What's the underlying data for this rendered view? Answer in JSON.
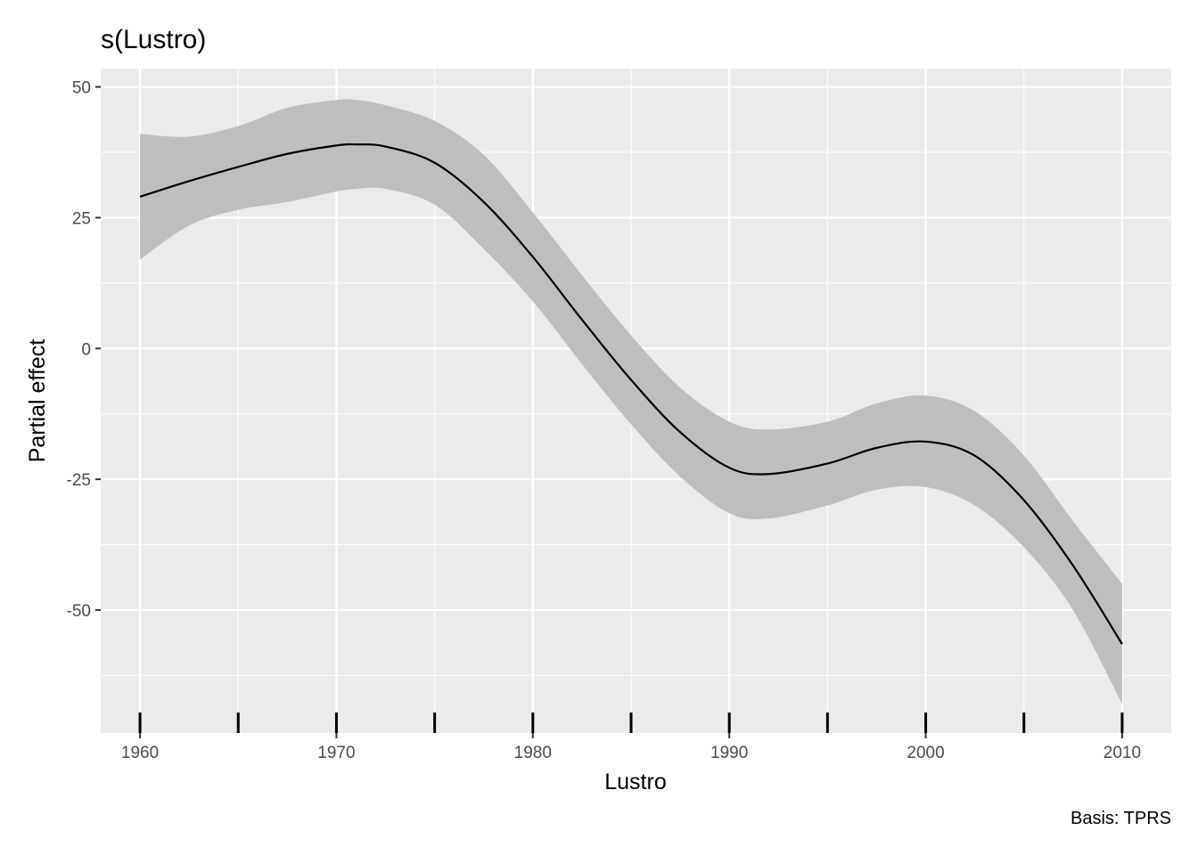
{
  "chart_data": {
    "type": "line",
    "title": "s(Lustro)",
    "xlabel": "Lustro",
    "ylabel": "Partial effect",
    "caption": "Basis: TPRS",
    "xlim": [
      1958,
      2012.5
    ],
    "ylim": [
      -73.5,
      53.5
    ],
    "x_ticks": [
      1960,
      1970,
      1980,
      1990,
      2000,
      2010
    ],
    "x_tick_labels": [
      "1960",
      "1970",
      "1980",
      "1990",
      "2000",
      "2010"
    ],
    "y_ticks": [
      50,
      25,
      0,
      -25,
      -50
    ],
    "y_tick_labels": [
      "50",
      "25",
      "0",
      "-25",
      "-50"
    ],
    "grid": true,
    "colors": {
      "panel": "#ebebeb",
      "grid": "#ffffff",
      "ribbon": "#bebebe",
      "line": "#000000",
      "rug": "#000000"
    },
    "series": [
      {
        "x": [
          1960,
          1962.5,
          1965,
          1967.5,
          1970,
          1971,
          1972.5,
          1975,
          1977.5,
          1980,
          1982.5,
          1985,
          1987.5,
          1990,
          1992,
          1995,
          1997.5,
          2000,
          2002.5,
          2005,
          2007.5,
          2010
        ],
        "y": [
          29,
          32,
          34.7,
          37.2,
          38.8,
          39,
          38.6,
          35.5,
          28,
          17.5,
          5.5,
          -6,
          -16,
          -22.8,
          -24,
          -22,
          -19,
          -17.8,
          -20.5,
          -29,
          -41.5,
          -56.5
        ],
        "lower": [
          17,
          23.5,
          26.5,
          28,
          30,
          30.5,
          30.5,
          27.5,
          19,
          9,
          -3,
          -14.5,
          -24.5,
          -31.5,
          -32.5,
          -30,
          -27,
          -26.5,
          -30,
          -38,
          -50,
          -68
        ],
        "upper": [
          41,
          40.5,
          42.5,
          46,
          47.5,
          47.5,
          46.5,
          43.5,
          37,
          26,
          14,
          2.5,
          -7.5,
          -14,
          -15.5,
          -14,
          -10.5,
          -9,
          -12,
          -20.5,
          -33,
          -45
        ]
      }
    ],
    "rug_x": [
      1960,
      1965,
      1970,
      1975,
      1980,
      1985,
      1990,
      1995,
      2000,
      2005,
      2010
    ]
  }
}
